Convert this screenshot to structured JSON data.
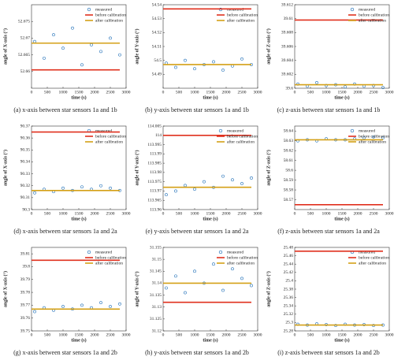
{
  "chart_data": [
    {
      "type": "scatter",
      "caption": "(a) x-axis between star sensors 1a and 1b",
      "xlabel": "time (s)",
      "ylabel": "angle of X-axis (°)",
      "xlim": [
        0,
        3000
      ],
      "xticks": [
        0,
        500,
        1000,
        1500,
        2000,
        2500,
        3000
      ],
      "ylim": [
        52.655,
        52.68
      ],
      "yticks": [
        52.66,
        52.665,
        52.67,
        52.675
      ],
      "series": [
        {
          "name": "measured",
          "mode": "markers",
          "color": "#1f6fb8",
          "x": [
            100,
            400,
            700,
            1000,
            1300,
            1600,
            1900,
            2200,
            2500,
            2800
          ],
          "values": [
            52.669,
            52.664,
            52.671,
            52.667,
            52.673,
            52.662,
            52.668,
            52.666,
            52.67,
            52.665
          ]
        },
        {
          "name": "before calibration",
          "mode": "line",
          "color": "#e0301e",
          "x": [
            0,
            2800
          ],
          "values": [
            52.6605,
            52.6605
          ]
        },
        {
          "name": "after calibration",
          "mode": "line",
          "color": "#d4a017",
          "x": [
            0,
            2800
          ],
          "values": [
            52.6685,
            52.6685
          ]
        }
      ]
    },
    {
      "type": "scatter",
      "caption": "(b) y-axis between star sensors 1a and 1b",
      "xlabel": "time (s)",
      "ylabel": "angle of Y-axis (°)",
      "xlim": [
        0,
        3000
      ],
      "xticks": [
        0,
        500,
        1000,
        1500,
        2000,
        2500,
        3000
      ],
      "ylim": [
        54.48,
        54.54
      ],
      "yticks": [
        54.49,
        54.5,
        54.51,
        54.52,
        54.53,
        54.54
      ],
      "series": [
        {
          "name": "measured",
          "mode": "markers",
          "color": "#1f6fb8",
          "x": [
            100,
            400,
            700,
            1000,
            1300,
            1600,
            1900,
            2200,
            2500,
            2800
          ],
          "values": [
            54.498,
            54.495,
            54.5,
            54.494,
            54.497,
            54.499,
            54.493,
            54.496,
            54.501,
            54.497
          ]
        },
        {
          "name": "before calibration",
          "mode": "line",
          "color": "#e0301e",
          "x": [
            0,
            2800
          ],
          "values": [
            54.537,
            54.537
          ]
        },
        {
          "name": "after calibration",
          "mode": "line",
          "color": "#d4a017",
          "x": [
            0,
            2800
          ],
          "values": [
            54.497,
            54.497
          ]
        }
      ]
    },
    {
      "type": "scatter",
      "caption": "(c) z-axis between star sensors 1a and 1b",
      "xlabel": "time (s)",
      "ylabel": "angle of Z-axis (°)",
      "xlim": [
        0,
        3000
      ],
      "xticks": [
        0,
        500,
        1000,
        1500,
        2000,
        2500,
        3000
      ],
      "ylim": [
        39.6,
        39.612
      ],
      "yticks": [
        39.6,
        39.602,
        39.604,
        39.606,
        39.608,
        39.61,
        39.612
      ],
      "series": [
        {
          "name": "measured",
          "mode": "markers",
          "color": "#1f6fb8",
          "x": [
            100,
            400,
            700,
            1000,
            1300,
            1600,
            1900,
            2200,
            2500,
            2800
          ],
          "values": [
            39.6006,
            39.6003,
            39.6008,
            39.6004,
            39.6005,
            39.6002,
            39.6006,
            39.6003,
            39.6004,
            39.6001
          ]
        },
        {
          "name": "before calibration",
          "mode": "line",
          "color": "#e0301e",
          "x": [
            0,
            2800
          ],
          "values": [
            39.6098,
            39.6098
          ]
        },
        {
          "name": "after calibration",
          "mode": "line",
          "color": "#d4a017",
          "x": [
            0,
            2800
          ],
          "values": [
            39.6005,
            39.6005
          ]
        }
      ]
    },
    {
      "type": "scatter",
      "caption": "(d) x-axis between star sensors 1a and 2a",
      "xlabel": "time (s)",
      "ylabel": "angle of X-axis (°)",
      "xlim": [
        0,
        3000
      ],
      "xticks": [
        0,
        500,
        1000,
        1500,
        2000,
        2500,
        3000
      ],
      "ylim": [
        90.3,
        90.37
      ],
      "yticks": [
        90.3,
        90.31,
        90.32,
        90.33,
        90.34,
        90.35,
        90.36,
        90.37
      ],
      "series": [
        {
          "name": "measured",
          "mode": "markers",
          "color": "#1f6fb8",
          "x": [
            100,
            400,
            700,
            1000,
            1300,
            1600,
            1900,
            2200,
            2500,
            2800
          ],
          "values": [
            90.314,
            90.317,
            90.315,
            90.318,
            90.316,
            90.319,
            90.317,
            90.32,
            90.318,
            90.316
          ]
        },
        {
          "name": "before calibration",
          "mode": "line",
          "color": "#e0301e",
          "x": [
            0,
            2800
          ],
          "values": [
            90.365,
            90.365
          ]
        },
        {
          "name": "after calibration",
          "mode": "line",
          "color": "#d4a017",
          "x": [
            0,
            2800
          ],
          "values": [
            90.316,
            90.316
          ]
        }
      ]
    },
    {
      "type": "scatter",
      "caption": "(e) y-axis between star sensors 1a and 2a",
      "xlabel": "time (s)",
      "ylabel": "angle of Y-axis (°)",
      "xlim": [
        0,
        3000
      ],
      "xticks": [
        0,
        500,
        1000,
        1500,
        2000,
        2500,
        3000
      ],
      "ylim": [
        113.96,
        114.005
      ],
      "yticks": [
        113.96,
        113.965,
        113.97,
        113.975,
        113.98,
        113.985,
        113.99,
        113.995,
        114,
        114.005
      ],
      "series": [
        {
          "name": "measured",
          "mode": "markers",
          "color": "#1f6fb8",
          "x": [
            100,
            400,
            700,
            1000,
            1300,
            1600,
            1900,
            2200,
            2500,
            2800
          ],
          "values": [
            113.968,
            113.97,
            113.973,
            113.971,
            113.975,
            113.972,
            113.978,
            113.976,
            113.974,
            113.977
          ]
        },
        {
          "name": "before calibration",
          "mode": "line",
          "color": "#e0301e",
          "x": [
            0,
            2800
          ],
          "values": [
            114,
            114
          ]
        },
        {
          "name": "after calibration",
          "mode": "line",
          "color": "#d4a017",
          "x": [
            0,
            2800
          ],
          "values": [
            113.972,
            113.972
          ]
        }
      ]
    },
    {
      "type": "scatter",
      "caption": "(f) z-axis between star sensors 1a and 2a",
      "xlabel": "time (s)",
      "ylabel": "angle of Z-axis (°)",
      "xlim": [
        0,
        3000
      ],
      "xticks": [
        0,
        500,
        1000,
        1500,
        2000,
        2500,
        3000
      ],
      "ylim": [
        58.56,
        58.645
      ],
      "yticks": [
        58.57,
        58.58,
        58.59,
        58.6,
        58.61,
        58.62,
        58.63,
        58.64
      ],
      "series": [
        {
          "name": "measured",
          "mode": "markers",
          "color": "#1f6fb8",
          "x": [
            100,
            400,
            700,
            1000,
            1300,
            1600,
            1900,
            2200,
            2500,
            2800
          ],
          "values": [
            58.63,
            58.631,
            58.63,
            58.632,
            58.631,
            58.631,
            58.632,
            58.633,
            58.634,
            58.633
          ]
        },
        {
          "name": "before calibration",
          "mode": "line",
          "color": "#e0301e",
          "x": [
            0,
            2800
          ],
          "values": [
            58.565,
            58.565
          ]
        },
        {
          "name": "after calibration",
          "mode": "line",
          "color": "#d4a017",
          "x": [
            0,
            2800
          ],
          "values": [
            58.631,
            58.631
          ]
        }
      ]
    },
    {
      "type": "scatter",
      "caption": "(g) x-axis between star sensors 1a and 2b",
      "xlabel": "time (s)",
      "ylabel": "angle of X-axis (°)",
      "xlim": [
        0,
        3000
      ],
      "xticks": [
        0,
        500,
        1000,
        1500,
        2000,
        2500,
        3000
      ],
      "ylim": [
        39.75,
        39.815
      ],
      "yticks": [
        39.75,
        39.76,
        39.77,
        39.78,
        39.79,
        39.8,
        39.81
      ],
      "series": [
        {
          "name": "measured",
          "mode": "markers",
          "color": "#1f6fb8",
          "x": [
            100,
            400,
            700,
            1000,
            1300,
            1600,
            1900,
            2200,
            2500,
            2800
          ],
          "values": [
            39.765,
            39.768,
            39.766,
            39.769,
            39.767,
            39.77,
            39.768,
            39.772,
            39.769,
            39.771
          ]
        },
        {
          "name": "before calibration",
          "mode": "line",
          "color": "#e0301e",
          "x": [
            0,
            2800
          ],
          "values": [
            39.805,
            39.805
          ]
        },
        {
          "name": "after calibration",
          "mode": "line",
          "color": "#d4a017",
          "x": [
            0,
            2800
          ],
          "values": [
            39.767,
            39.767
          ]
        }
      ]
    },
    {
      "type": "scatter",
      "caption": "(h) y-axis between star sensors 1a and 2b",
      "xlabel": "time (s)",
      "ylabel": "angle of Y-axis (°)",
      "xlim": [
        0,
        3000
      ],
      "xticks": [
        0,
        500,
        1000,
        1500,
        2000,
        2500,
        3000
      ],
      "ylim": [
        31.12,
        31.155
      ],
      "yticks": [
        31.12,
        31.125,
        31.13,
        31.135,
        31.14,
        31.145,
        31.15,
        31.155
      ],
      "series": [
        {
          "name": "measured",
          "mode": "markers",
          "color": "#1f6fb8",
          "x": [
            100,
            400,
            700,
            1000,
            1300,
            1600,
            1900,
            2200,
            2500,
            2800
          ],
          "values": [
            31.138,
            31.143,
            31.136,
            31.145,
            31.14,
            31.148,
            31.137,
            31.146,
            31.142,
            31.139
          ]
        },
        {
          "name": "before calibration",
          "mode": "line",
          "color": "#e0301e",
          "x": [
            0,
            2800
          ],
          "values": [
            31.132,
            31.132
          ]
        },
        {
          "name": "after calibration",
          "mode": "line",
          "color": "#d4a017",
          "x": [
            0,
            2800
          ],
          "values": [
            31.14,
            31.14
          ]
        }
      ]
    },
    {
      "type": "scatter",
      "caption": "(i) z-axis between star sensors 1a and 2b",
      "xlabel": "time (s)",
      "ylabel": "angle of Z-axis (°)",
      "xlim": [
        0,
        3000
      ],
      "xticks": [
        0,
        500,
        1000,
        1500,
        2000,
        2500,
        3000
      ],
      "ylim": [
        25.28,
        25.48
      ],
      "yticks": [
        25.28,
        25.3,
        25.32,
        25.34,
        25.36,
        25.38,
        25.4,
        25.42,
        25.44,
        25.46,
        25.48
      ],
      "series": [
        {
          "name": "measured",
          "mode": "markers",
          "color": "#1f6fb8",
          "x": [
            100,
            400,
            700,
            1000,
            1300,
            1600,
            1900,
            2200,
            2500,
            2800
          ],
          "values": [
            25.296,
            25.294,
            25.297,
            25.295,
            25.293,
            25.296,
            25.294,
            25.295,
            25.293,
            25.294
          ]
        },
        {
          "name": "before calibration",
          "mode": "line",
          "color": "#e0301e",
          "x": [
            0,
            2800
          ],
          "values": [
            25.471,
            25.471
          ]
        },
        {
          "name": "after calibration",
          "mode": "line",
          "color": "#d4a017",
          "x": [
            0,
            2800
          ],
          "values": [
            25.294,
            25.294
          ]
        }
      ]
    }
  ]
}
